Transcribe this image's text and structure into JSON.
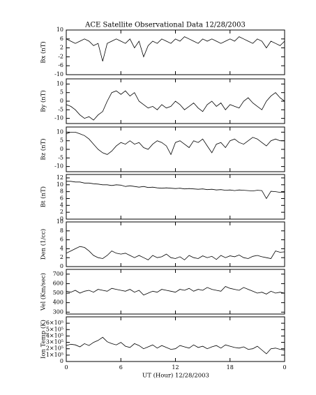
{
  "chart_data": [
    {
      "type": "line",
      "title": "ACE Satellite Observational Data   12/28/2003",
      "ylabel": "Bx (nT)",
      "color": "#000000",
      "x": [
        0,
        0.5,
        1,
        1.5,
        2,
        2.5,
        3,
        3.5,
        4,
        4.5,
        5,
        5.5,
        6,
        6.5,
        7,
        7.5,
        8,
        8.5,
        9,
        9.5,
        10,
        10.5,
        11,
        11.5,
        12,
        12.5,
        13,
        13.5,
        14,
        14.5,
        15,
        15.5,
        16,
        16.5,
        17,
        17.5,
        18,
        18.5,
        19,
        19.5,
        20,
        20.5,
        21,
        21.5,
        22,
        22.5,
        23,
        23.5,
        24
      ],
      "values": [
        6,
        5,
        4,
        5,
        6,
        5,
        3,
        4,
        -4,
        4,
        5,
        6,
        5,
        4,
        6,
        2,
        5,
        -2,
        3,
        5,
        4,
        6,
        5,
        4,
        6,
        5,
        7,
        6,
        5,
        4,
        6,
        5,
        6,
        5,
        4,
        5,
        6,
        5,
        7,
        6,
        5,
        4,
        6,
        5,
        2,
        5,
        4,
        3,
        5
      ],
      "xlim": [
        0,
        24
      ],
      "ylim": [
        -10,
        10
      ],
      "yticks": [
        -10,
        -6,
        -2,
        2,
        6,
        10
      ]
    },
    {
      "type": "line",
      "ylabel": "By (nT)",
      "color": "#000000",
      "x": [
        0,
        0.5,
        1,
        1.5,
        2,
        2.5,
        3,
        3.5,
        4,
        4.5,
        5,
        5.5,
        6,
        6.5,
        7,
        7.5,
        8,
        8.5,
        9,
        9.5,
        10,
        10.5,
        11,
        11.5,
        12,
        12.5,
        13,
        13.5,
        14,
        14.5,
        15,
        15.5,
        16,
        16.5,
        17,
        17.5,
        18,
        18.5,
        19,
        19.5,
        20,
        20.5,
        21,
        21.5,
        22,
        22.5,
        23,
        23.5,
        24
      ],
      "values": [
        -2,
        -3,
        -5,
        -8,
        -10,
        -9,
        -11,
        -8,
        -6,
        0,
        5,
        6,
        4,
        6,
        3,
        5,
        0,
        -2,
        -4,
        -3,
        -5,
        -2,
        -4,
        -3,
        0,
        -2,
        -5,
        -3,
        -1,
        -4,
        -6,
        -2,
        0,
        -3,
        -1,
        -5,
        -2,
        -3,
        -4,
        0,
        2,
        -1,
        -3,
        -5,
        0,
        3,
        5,
        2,
        0
      ],
      "xlim": [
        0,
        24
      ],
      "ylim": [
        -13,
        13
      ],
      "yticks": [
        -10,
        -5,
        0,
        5,
        10
      ]
    },
    {
      "type": "line",
      "ylabel": "Bz (nT)",
      "color": "#000000",
      "x": [
        0,
        0.5,
        1,
        1.5,
        2,
        2.5,
        3,
        3.5,
        4,
        4.5,
        5,
        5.5,
        6,
        6.5,
        7,
        7.5,
        8,
        8.5,
        9,
        9.5,
        10,
        10.5,
        11,
        11.5,
        12,
        12.5,
        13,
        13.5,
        14,
        14.5,
        15,
        15.5,
        16,
        16.5,
        17,
        17.5,
        18,
        18.5,
        19,
        19.5,
        20,
        20.5,
        21,
        21.5,
        22,
        22.5,
        23,
        23.5,
        24
      ],
      "values": [
        9,
        10,
        10,
        9,
        8,
        6,
        3,
        0,
        -2,
        -3,
        -1,
        2,
        4,
        3,
        5,
        3,
        4,
        1,
        0,
        3,
        5,
        4,
        2,
        -3,
        4,
        5,
        3,
        1,
        5,
        4,
        6,
        2,
        -2,
        3,
        4,
        1,
        5,
        6,
        4,
        3,
        5,
        7,
        6,
        4,
        2,
        5,
        6,
        5,
        5
      ],
      "xlim": [
        0,
        24
      ],
      "ylim": [
        -13,
        13
      ],
      "yticks": [
        -10,
        -5,
        0,
        5,
        10
      ]
    },
    {
      "type": "line",
      "ylabel": "Bt (nT)",
      "color": "#000000",
      "x": [
        0,
        0.5,
        1,
        1.5,
        2,
        2.5,
        3,
        3.5,
        4,
        4.5,
        5,
        5.5,
        6,
        6.5,
        7,
        7.5,
        8,
        8.5,
        9,
        9.5,
        10,
        10.5,
        11,
        11.5,
        12,
        12.5,
        13,
        13.5,
        14,
        14.5,
        15,
        15.5,
        16,
        16.5,
        17,
        17.5,
        18,
        18.5,
        19,
        19.5,
        20,
        20.5,
        21,
        21.5,
        22,
        22.5,
        23,
        23.5,
        24
      ],
      "values": [
        11,
        11,
        10.8,
        10.8,
        10.5,
        10.5,
        10.3,
        10.2,
        10,
        10,
        9.8,
        10,
        9.9,
        9.5,
        9.7,
        9.5,
        9.3,
        9.5,
        9.2,
        9.3,
        9.1,
        9,
        9.1,
        9,
        8.9,
        9,
        8.8,
        8.9,
        8.8,
        8.7,
        8.8,
        8.6,
        8.7,
        8.5,
        8.6,
        8.4,
        8.5,
        8.3,
        8.5,
        8.4,
        8.3,
        8.2,
        8.4,
        8.3,
        6,
        8.1,
        8,
        7.8,
        7.8
      ],
      "xlim": [
        0,
        24
      ],
      "ylim": [
        0,
        13
      ],
      "yticks": [
        0,
        2,
        4,
        6,
        8,
        10,
        12
      ]
    },
    {
      "type": "line",
      "ylabel": "Den (1/cc)",
      "color": "#000000",
      "x": [
        0,
        0.5,
        1,
        1.5,
        2,
        2.5,
        3,
        3.5,
        4,
        4.5,
        5,
        5.5,
        6,
        6.5,
        7,
        7.5,
        8,
        8.5,
        9,
        9.5,
        10,
        10.5,
        11,
        11.5,
        12,
        12.5,
        13,
        13.5,
        14,
        14.5,
        15,
        15.5,
        16,
        16.5,
        17,
        17.5,
        18,
        18.5,
        19,
        19.5,
        20,
        20.5,
        21,
        21.5,
        22,
        22.5,
        23,
        23.5,
        24
      ],
      "values": [
        3,
        3.5,
        4,
        4.5,
        4.3,
        3.5,
        2.5,
        2,
        1.8,
        2.5,
        3.5,
        3,
        2.8,
        3,
        2.5,
        2,
        2.5,
        2,
        1.5,
        2.5,
        2,
        2.2,
        2.8,
        2,
        1.8,
        2.2,
        1.5,
        2.5,
        2,
        1.8,
        2.4,
        2,
        2.3,
        1.6,
        2.5,
        2,
        2.4,
        2.2,
        2.6,
        2,
        1.8,
        2.3,
        2.5,
        2.2,
        2,
        1.8,
        3.5,
        3.2,
        3.3
      ],
      "xlim": [
        0,
        24
      ],
      "ylim": [
        0,
        10
      ],
      "yticks": [
        0,
        2,
        4,
        6,
        8,
        10
      ]
    },
    {
      "type": "line",
      "ylabel": "Vel (Km/sec)",
      "color": "#000000",
      "x": [
        0,
        0.5,
        1,
        1.5,
        2,
        2.5,
        3,
        3.5,
        4,
        4.5,
        5,
        5.5,
        6,
        6.5,
        7,
        7.5,
        8,
        8.5,
        9,
        9.5,
        10,
        10.5,
        11,
        11.5,
        12,
        12.5,
        13,
        13.5,
        14,
        14.5,
        15,
        15.5,
        16,
        16.5,
        17,
        17.5,
        18,
        18.5,
        19,
        19.5,
        20,
        20.5,
        21,
        21.5,
        22,
        22.5,
        23,
        23.5,
        24
      ],
      "values": [
        520,
        510,
        530,
        500,
        520,
        530,
        510,
        540,
        530,
        520,
        550,
        540,
        530,
        520,
        540,
        510,
        530,
        480,
        500,
        520,
        510,
        540,
        530,
        520,
        510,
        540,
        530,
        550,
        520,
        540,
        530,
        560,
        540,
        530,
        520,
        570,
        550,
        540,
        530,
        560,
        540,
        520,
        500,
        510,
        490,
        520,
        500,
        510,
        500
      ],
      "xlim": [
        0,
        24
      ],
      "ylim": [
        280,
        750
      ],
      "yticks": [
        300,
        400,
        500,
        600,
        700
      ]
    },
    {
      "type": "line",
      "ylabel": "Ion Temp (K)",
      "xlabel": "UT (Hour)   12/28/2003",
      "color": "#000000",
      "x": [
        0,
        0.5,
        1,
        1.5,
        2,
        2.5,
        3,
        3.5,
        4,
        4.5,
        5,
        5.5,
        6,
        6.5,
        7,
        7.5,
        8,
        8.5,
        9,
        9.5,
        10,
        10.5,
        11,
        11.5,
        12,
        12.5,
        13,
        13.5,
        14,
        14.5,
        15,
        15.5,
        16,
        16.5,
        17,
        17.5,
        18,
        18.5,
        19,
        19.5,
        20,
        20.5,
        21,
        21.5,
        22,
        22.5,
        23,
        23.5,
        24
      ],
      "values": [
        250000,
        270000,
        260000,
        230000,
        280000,
        250000,
        300000,
        330000,
        380000,
        310000,
        280000,
        260000,
        300000,
        240000,
        220000,
        280000,
        250000,
        200000,
        230000,
        260000,
        210000,
        250000,
        220000,
        190000,
        200000,
        250000,
        230000,
        210000,
        260000,
        220000,
        240000,
        200000,
        230000,
        250000,
        210000,
        260000,
        240000,
        220000,
        210000,
        230000,
        190000,
        200000,
        240000,
        180000,
        120000,
        200000,
        210000,
        190000,
        180000
      ],
      "xlim": [
        0,
        24
      ],
      "ylim": [
        0,
        700000
      ],
      "yticks": [
        0,
        {
          "value": 100000,
          "label": "1×10⁵"
        },
        {
          "value": 200000,
          "label": "2×10⁵"
        },
        {
          "value": 300000,
          "label": "3×10⁵"
        },
        {
          "value": 400000,
          "label": "4×10⁵"
        },
        {
          "value": 500000,
          "label": "5×10⁵"
        },
        {
          "value": 600000,
          "label": "6×10⁵"
        }
      ],
      "xticks": [
        0,
        6,
        12,
        18,
        {
          "value": 24,
          "label": "0"
        }
      ]
    }
  ]
}
